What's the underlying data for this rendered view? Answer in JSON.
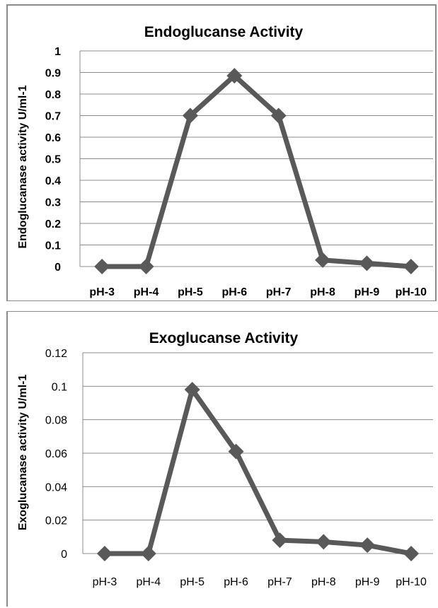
{
  "chart_data": [
    {
      "type": "line",
      "title": "Endoglucanse Activity",
      "xlabel": "",
      "ylabel": "Endoglucanase  activity  U/ml-1",
      "categories": [
        "pH-3",
        "pH-4",
        "pH-5",
        "pH-6",
        "pH-7",
        "pH-8",
        "pH-9",
        "pH-10"
      ],
      "series": [
        {
          "values": [
            0,
            0,
            0.7,
            0.885,
            0.7,
            0.03,
            0.015,
            0
          ]
        }
      ],
      "ylim": [
        0,
        1
      ],
      "yticks": [
        "0",
        "0.1",
        "0.2",
        "0.3",
        "0.4",
        "0.5",
        "0.6",
        "0.7",
        "0.8",
        "0.9",
        "1"
      ],
      "grid": true,
      "legend": "none",
      "line_color": "#595959",
      "marker": "diamond"
    },
    {
      "type": "line",
      "title": "Exoglucanse  Activity",
      "xlabel": "",
      "ylabel": "Exoglucanase  activity  U/ml-1",
      "categories": [
        "pH-3",
        "pH-4",
        "pH-5",
        "pH-6",
        "pH-7",
        "pH-8",
        "pH-9",
        "pH-10"
      ],
      "series": [
        {
          "values": [
            0,
            0,
            0.098,
            0.061,
            0.008,
            0.007,
            0.005,
            0
          ]
        }
      ],
      "ylim": [
        0,
        0.12
      ],
      "yticks": [
        "0",
        "0.02",
        "0.04",
        "0.06",
        "0.08",
        "0.1",
        "0.12"
      ],
      "grid": true,
      "legend": "none",
      "line_color": "#595959",
      "marker": "diamond"
    }
  ]
}
